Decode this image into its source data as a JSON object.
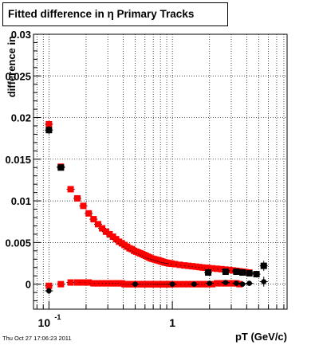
{
  "chart_data": {
    "type": "scatter",
    "title": "Fitted difference in  η  Primary Tracks",
    "xlabel": "pT (GeV/c)",
    "ylabel": "difference in",
    "x_scale": "log",
    "xlim": [
      0.075,
      8.5
    ],
    "ylim": [
      -0.003,
      0.03
    ],
    "grid": true,
    "legend": "none",
    "y_ticks": [
      "0",
      "0.005",
      "0.01",
      "0.015",
      "0.02",
      "0.025",
      "0.03"
    ],
    "x_tick_labels": [
      {
        "value": 0.1,
        "base": "10",
        "exp": "-1"
      },
      {
        "value": 1,
        "base": "1",
        "exp": ""
      }
    ],
    "series": [
      {
        "color": "#ff0000",
        "marker": "square",
        "x": [
          0.1,
          0.125,
          0.15,
          0.17,
          0.19,
          0.21,
          0.23,
          0.25,
          0.27,
          0.29,
          0.31,
          0.33,
          0.35,
          0.37,
          0.39,
          0.41,
          0.43,
          0.45,
          0.47,
          0.49,
          0.51,
          0.53,
          0.55,
          0.57,
          0.59,
          0.61,
          0.63,
          0.65,
          0.67,
          0.69,
          0.71,
          0.73,
          0.75,
          0.77,
          0.79,
          0.81,
          0.83,
          0.85,
          0.87,
          0.89,
          0.91,
          0.93,
          0.95,
          0.97,
          0.99,
          1.05,
          1.15,
          1.25,
          1.35,
          1.45,
          1.55,
          1.65,
          1.75,
          1.85,
          1.95,
          2.1,
          2.3,
          2.5,
          2.7,
          2.9,
          3.1,
          3.3,
          3.5,
          3.7,
          3.9,
          4.2
        ],
        "y": [
          0.0192,
          0.0141,
          0.0114,
          0.0103,
          0.0094,
          0.0085,
          0.0078,
          0.0072,
          0.0067,
          0.0063,
          0.006,
          0.0057,
          0.0054,
          0.0051,
          0.0049,
          0.0047,
          0.0045,
          0.0043,
          0.0042,
          0.004,
          0.0039,
          0.0038,
          0.0037,
          0.0036,
          0.0035,
          0.0034,
          0.0033,
          0.0032,
          0.0031,
          0.00305,
          0.003,
          0.00295,
          0.0029,
          0.00285,
          0.0028,
          0.00275,
          0.0027,
          0.00265,
          0.0026,
          0.00258,
          0.00255,
          0.00252,
          0.0025,
          0.00248,
          0.00245,
          0.0024,
          0.00232,
          0.00225,
          0.0022,
          0.00215,
          0.0021,
          0.00205,
          0.002,
          0.00197,
          0.00194,
          0.0019,
          0.00185,
          0.0018,
          0.00175,
          0.0017,
          0.00165,
          0.0016,
          0.00155,
          0.0015,
          0.00145,
          0.0014
        ]
      },
      {
        "color": "#ff0000",
        "marker": "square",
        "x": [
          0.1,
          0.125,
          0.15,
          0.17,
          0.19,
          0.21,
          0.23,
          0.25,
          0.27,
          0.29,
          0.31,
          0.33,
          0.35,
          0.37,
          0.39,
          0.41,
          0.43,
          0.45,
          0.47,
          0.49,
          0.51,
          0.53,
          0.55,
          0.57,
          0.59,
          0.61,
          0.63,
          0.65,
          0.67,
          0.69,
          0.71,
          0.73,
          0.75,
          0.77,
          0.79,
          0.81,
          0.83,
          0.85,
          0.87,
          0.89,
          0.91,
          0.93,
          0.95,
          0.97,
          0.99,
          1.05,
          1.15,
          1.25,
          1.35,
          1.45,
          1.55,
          1.65,
          1.75,
          1.85,
          1.95,
          2.1,
          2.3,
          2.5,
          2.7,
          2.9,
          3.1,
          3.3,
          3.5
        ],
        "y": [
          -0.0002,
          0.0,
          0.0002,
          0.0002,
          0.0002,
          0.0002,
          0.0001,
          0.0001,
          0.0001,
          0.0001,
          0.0001,
          0.0001,
          0.0001,
          0.0001,
          0.0001,
          0.0,
          0.0,
          0.0,
          0.0,
          0.0,
          0.0,
          0.0,
          0.0,
          0.0,
          0.0,
          0.0,
          0.0,
          0.0,
          0.0,
          0.0,
          0.0,
          0.0,
          0.0,
          0.0,
          0.0,
          0.0,
          0.0,
          0.0,
          0.0,
          0.0,
          0.0,
          0.0,
          0.0,
          0.0,
          0.0,
          0.0,
          0.0,
          0.0,
          0.0,
          0.0,
          0.0,
          0.0,
          0.0,
          0.0,
          0.0,
          0.0,
          0.0001,
          0.0001,
          0.0001,
          0.0001,
          0.0001,
          0.0001,
          0.0
        ]
      },
      {
        "color": "#000000",
        "marker": "square",
        "x": [
          0.1,
          0.125,
          1.95,
          2.7,
          3.3,
          3.7,
          4.2,
          4.8,
          5.5
        ],
        "y": [
          0.0185,
          0.014,
          0.0014,
          0.0015,
          0.0015,
          0.0014,
          0.0013,
          0.0012,
          0.0022
        ],
        "yerr": [
          0.0005,
          0.0003,
          0.0002,
          0.0002,
          0.0002,
          0.0003,
          0.0003,
          0.0004,
          0.0006
        ]
      },
      {
        "color": "#000000",
        "marker": "circle",
        "x": [
          0.1,
          0.5,
          1.0,
          1.5,
          2.0,
          2.7,
          3.3,
          3.7,
          4.2,
          5.5
        ],
        "y": [
          -0.0008,
          0.0,
          0.0,
          0.0,
          0.0001,
          0.0002,
          0.0001,
          0.0,
          0.0001,
          0.0003
        ],
        "yerr": [
          0.0004,
          0.0001,
          0.0001,
          0.0001,
          0.0001,
          0.0002,
          0.0002,
          0.0002,
          0.0003,
          0.0006
        ]
      }
    ]
  },
  "footer": {
    "timestamp": "Thu Oct 27 17:06:23 2011"
  }
}
